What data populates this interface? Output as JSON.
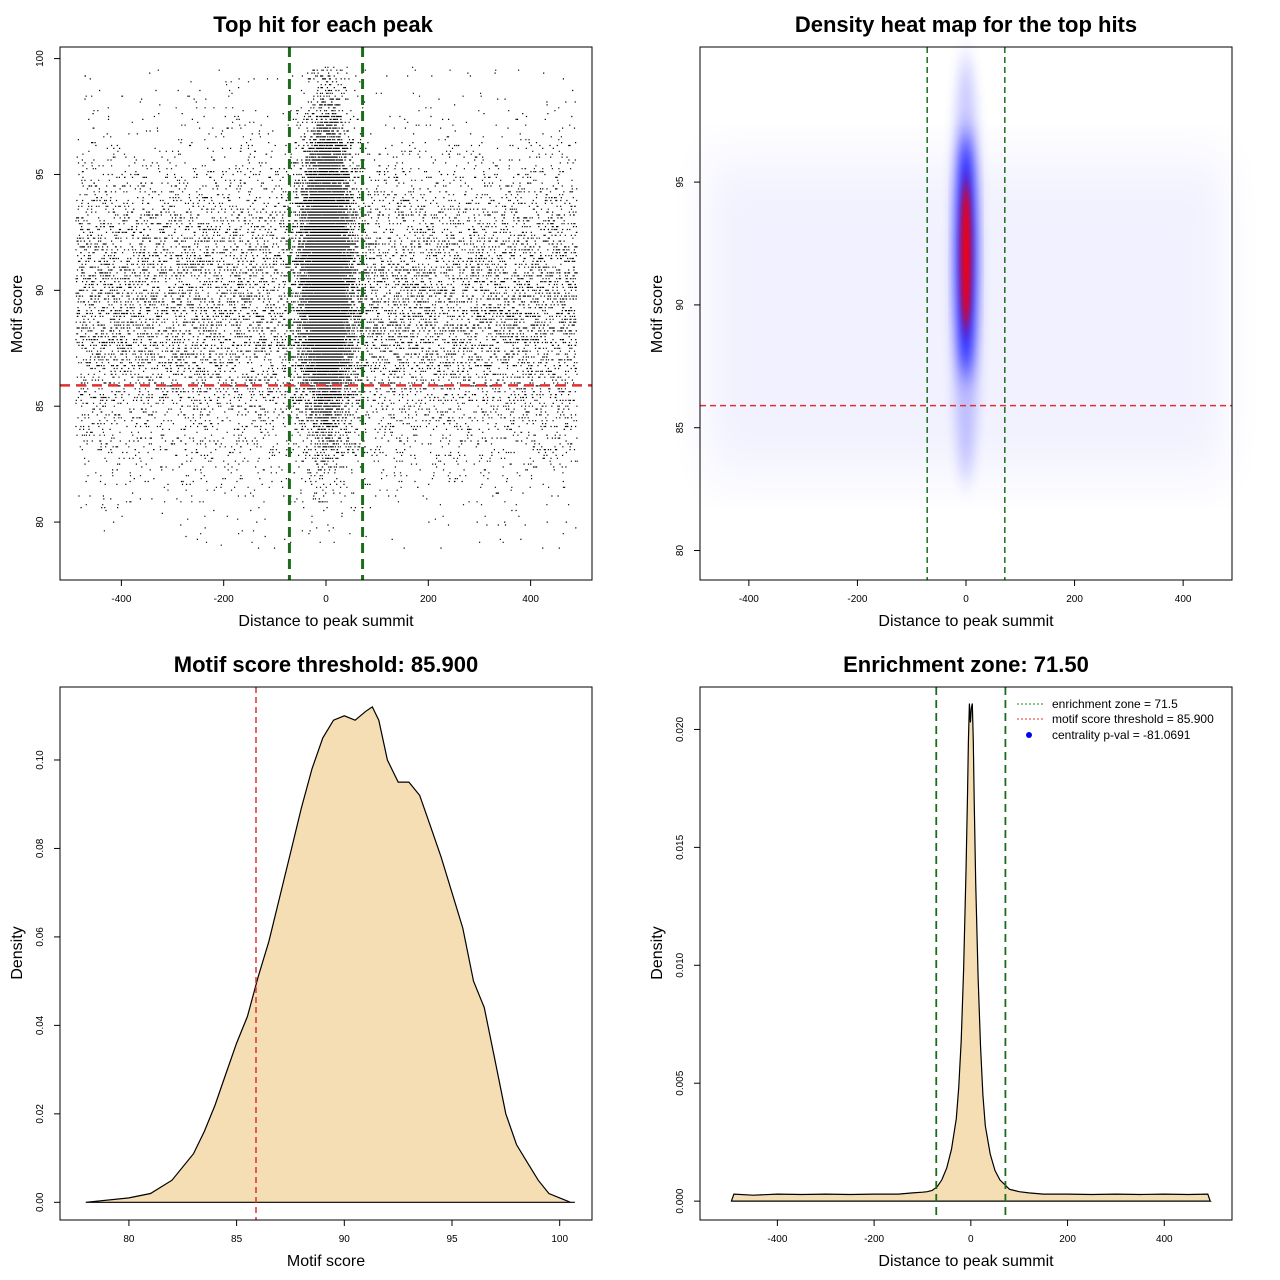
{
  "chart_data": [
    {
      "type": "scatter",
      "title": "Top hit for each peak",
      "xlabel": "Distance to peak summit",
      "ylabel": "Motif score",
      "xlim": [
        -520,
        520
      ],
      "ylim": [
        77.5,
        100.5
      ],
      "xticks": [
        -400,
        -200,
        0,
        200,
        400
      ],
      "yticks": [
        80,
        85,
        90,
        95,
        100
      ],
      "n_points_est": 26000,
      "central_spread_sd": 22,
      "x_range": [
        -490,
        490
      ],
      "vlines": [
        -71.5,
        71.5
      ],
      "hline": 85.9,
      "vline_color": "#1a6e1a",
      "hline_color": "#e03030",
      "point_color": "#000000"
    },
    {
      "type": "heatmap",
      "title": "Density heat map for the top hits",
      "xlabel": "Distance to peak summit",
      "ylabel": "Motif score",
      "xlim": [
        -490,
        490
      ],
      "ylim": [
        78.8,
        100.5
      ],
      "xticks": [
        -400,
        -200,
        0,
        200,
        400
      ],
      "yticks": [
        80,
        85,
        90,
        95
      ],
      "hotspot": {
        "x": 0,
        "y_center": 92,
        "y_range": [
          84,
          99
        ]
      },
      "vlines": [
        -71.5,
        71.5
      ],
      "hline": 85.9,
      "colors": [
        "#ffffff",
        "#0000ff",
        "#ff0000"
      ]
    },
    {
      "type": "area",
      "title": "Motif score threshold: 85.900",
      "xlabel": "Motif score",
      "ylabel": "Density",
      "xlim": [
        76.8,
        101.5
      ],
      "ylim": [
        -0.004,
        0.1165
      ],
      "xticks": [
        80,
        85,
        90,
        95,
        100
      ],
      "yticks": [
        0.0,
        0.02,
        0.04,
        0.06,
        0.08,
        0.1
      ],
      "ytick_labels": [
        "0.00",
        "0.02",
        "0.04",
        "0.06",
        "0.08",
        "0.10"
      ],
      "x": [
        78,
        80,
        81,
        82,
        83,
        83.5,
        84,
        84.5,
        85,
        85.5,
        86,
        86.5,
        87,
        87.5,
        88,
        88.5,
        89,
        89.5,
        90,
        90.5,
        91,
        91.3,
        91.6,
        92,
        92.5,
        93,
        93.5,
        94,
        94.5,
        95,
        95.5,
        96,
        96.5,
        97,
        97.5,
        98,
        98.5,
        99,
        99.5,
        100,
        100.5,
        100.7
      ],
      "values": [
        0.0,
        0.001,
        0.002,
        0.005,
        0.011,
        0.016,
        0.022,
        0.029,
        0.036,
        0.042,
        0.051,
        0.059,
        0.069,
        0.079,
        0.089,
        0.098,
        0.105,
        0.109,
        0.11,
        0.109,
        0.111,
        0.112,
        0.109,
        0.1,
        0.095,
        0.095,
        0.092,
        0.085,
        0.078,
        0.07,
        0.062,
        0.05,
        0.044,
        0.032,
        0.02,
        0.013,
        0.009,
        0.005,
        0.002,
        0.001,
        0.0,
        0.0
      ],
      "vline": 85.9,
      "vline_color": "#e03030",
      "fill": "#f5deb3"
    },
    {
      "type": "area",
      "title": "Enrichment zone: 71.50",
      "xlabel": "Distance to peak summit",
      "ylabel": "Density",
      "xlim": [
        -560,
        540
      ],
      "ylim": [
        -0.0008,
        0.0218
      ],
      "xticks": [
        -400,
        -200,
        0,
        200,
        400
      ],
      "yticks": [
        0.0,
        0.005,
        0.01,
        0.015,
        0.02
      ],
      "ytick_labels": [
        "0.000",
        "0.005",
        "0.010",
        "0.015",
        "0.020"
      ],
      "x": [
        -495,
        -490,
        -450,
        -400,
        -350,
        -300,
        -250,
        -200,
        -150,
        -120,
        -100,
        -90,
        -80,
        -70,
        -60,
        -50,
        -40,
        -30,
        -25,
        -20,
        -15,
        -10,
        -7,
        -5,
        -3,
        -1,
        1,
        3,
        5,
        7,
        10,
        15,
        20,
        25,
        30,
        40,
        50,
        60,
        70,
        80,
        90,
        100,
        120,
        150,
        200,
        250,
        300,
        350,
        400,
        450,
        490,
        495
      ],
      "values": [
        0.0,
        0.0003,
        0.00025,
        0.0003,
        0.00028,
        0.0003,
        0.00028,
        0.0003,
        0.0003,
        0.00035,
        0.00038,
        0.0004,
        0.00045,
        0.0006,
        0.0009,
        0.0014,
        0.0022,
        0.0035,
        0.0048,
        0.0068,
        0.0098,
        0.014,
        0.0172,
        0.0195,
        0.0211,
        0.0203,
        0.0209,
        0.0211,
        0.0195,
        0.017,
        0.0135,
        0.0095,
        0.0066,
        0.0045,
        0.0032,
        0.002,
        0.0013,
        0.0009,
        0.0007,
        0.0005,
        0.00045,
        0.0004,
        0.00035,
        0.0003,
        0.0003,
        0.00028,
        0.0003,
        0.00028,
        0.0003,
        0.00028,
        0.0003,
        0.0
      ],
      "vlines": [
        -71.5,
        71.5
      ],
      "vline_color": "#1a6e1a",
      "fill": "#f5deb3",
      "legend": {
        "position": "top-right",
        "entries": [
          {
            "label": "enrichment zone = 71.5",
            "color": "#1a8a1a",
            "style": "dotted-line"
          },
          {
            "label": "motif score threshold = 85.900",
            "color": "#e03030",
            "style": "dotted-line"
          },
          {
            "label": "centrality p-val = -81.0691",
            "color": "#0000ff",
            "style": "point"
          }
        ]
      }
    }
  ]
}
